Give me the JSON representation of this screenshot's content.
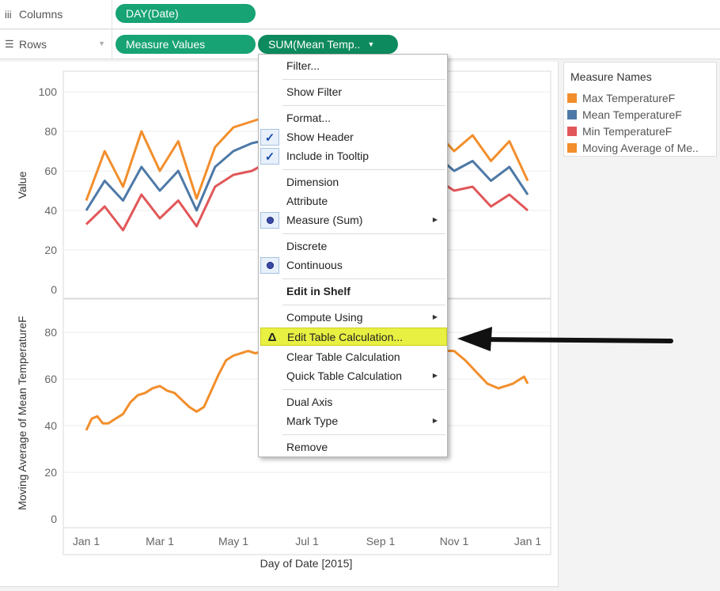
{
  "columns_shelf": {
    "icon": "columns-icon",
    "label": "Columns",
    "pills": [
      "DAY(Date)"
    ]
  },
  "rows_shelf": {
    "icon": "rows-icon",
    "label": "Rows",
    "pills": [
      "Measure Values",
      "SUM(Mean Temp.."
    ]
  },
  "legend": {
    "title": "Measure Names",
    "items": [
      {
        "label": "Max TemperatureF",
        "color": "#f28e2b"
      },
      {
        "label": "Mean TemperatureF",
        "color": "#4e79a7"
      },
      {
        "label": "Min TemperatureF",
        "color": "#e15759"
      },
      {
        "label": "Moving Average of Me..",
        "color": "#f28e2b"
      }
    ]
  },
  "context_menu": {
    "items": [
      {
        "label": "Filter..."
      },
      {
        "label": "Show Filter"
      },
      {
        "label": "Format..."
      },
      {
        "label": "Show Header",
        "check": true
      },
      {
        "label": "Include in Tooltip",
        "check": true
      },
      {
        "label": "Dimension"
      },
      {
        "label": "Attribute"
      },
      {
        "label": "Measure (Sum)",
        "radio": true,
        "submenu": true
      },
      {
        "label": "Discrete"
      },
      {
        "label": "Continuous",
        "radio": true
      },
      {
        "label": "Edit in Shelf",
        "bold": true
      },
      {
        "label": "Compute Using",
        "submenu": true
      },
      {
        "label": "Edit Table Calculation...",
        "highlighted": true,
        "delta_icon": "delta-icon"
      },
      {
        "label": "Clear Table Calculation"
      },
      {
        "label": "Quick Table Calculation",
        "submenu": true
      },
      {
        "label": "Dual Axis"
      },
      {
        "label": "Mark Type",
        "submenu": true
      },
      {
        "label": "Remove"
      }
    ]
  },
  "chart_data": [
    {
      "type": "line",
      "ylabel": "Value",
      "ylim": [
        0,
        105
      ],
      "yticks": [
        0,
        20,
        40,
        60,
        80,
        100
      ],
      "x_tick_labels": [
        "Jan 1",
        "Mar 1",
        "May 1",
        "Jul 1",
        "Sep 1",
        "Nov 1",
        "Jan 1"
      ],
      "x_months": [
        0,
        2,
        4,
        6,
        8,
        10,
        12
      ],
      "grid": "horizontal",
      "series": [
        {
          "name": "Max TemperatureF",
          "color": "#f28e2b",
          "x": [
            0.0,
            0.5,
            1.0,
            1.5,
            2.0,
            2.5,
            3.0,
            3.5,
            4.0,
            4.5,
            5.0,
            5.5,
            6.0,
            6.5,
            7.0,
            7.5,
            8.0,
            8.5,
            9.0,
            9.5,
            10.0,
            10.5,
            11.0,
            11.5,
            12.0
          ],
          "values": [
            45,
            70,
            52,
            80,
            60,
            75,
            46,
            72,
            82,
            85,
            88,
            84,
            80,
            86,
            84,
            90,
            82,
            78,
            85,
            80,
            70,
            78,
            65,
            75,
            55
          ]
        },
        {
          "name": "Mean TemperatureF",
          "color": "#4e79a7",
          "x": [
            0.0,
            0.5,
            1.0,
            1.5,
            2.0,
            2.5,
            3.0,
            3.5,
            4.0,
            4.5,
            5.0,
            5.5,
            6.0,
            6.5,
            7.0,
            7.5,
            8.0,
            8.5,
            9.0,
            9.5,
            10.0,
            10.5,
            11.0,
            11.5,
            12.0
          ],
          "values": [
            40,
            55,
            45,
            62,
            50,
            60,
            40,
            62,
            70,
            74,
            76,
            72,
            70,
            74,
            73,
            76,
            70,
            68,
            72,
            68,
            60,
            65,
            55,
            62,
            48
          ]
        },
        {
          "name": "Min TemperatureF",
          "color": "#e15759",
          "x": [
            0.0,
            0.5,
            1.0,
            1.5,
            2.0,
            2.5,
            3.0,
            3.5,
            4.0,
            4.5,
            5.0,
            5.5,
            6.0,
            6.5,
            7.0,
            7.5,
            8.0,
            8.5,
            9.0,
            9.5,
            10.0,
            10.5,
            11.0,
            11.5,
            12.0
          ],
          "values": [
            33,
            42,
            30,
            48,
            36,
            45,
            32,
            52,
            58,
            60,
            65,
            62,
            62,
            64,
            63,
            65,
            60,
            58,
            62,
            56,
            50,
            52,
            42,
            48,
            40
          ]
        }
      ]
    },
    {
      "type": "line",
      "ylabel": "Moving Average of Mean TemperatureF",
      "xlabel": "Day of Date [2015]",
      "ylim": [
        0,
        90
      ],
      "yticks": [
        0,
        20,
        40,
        60,
        80
      ],
      "x_tick_labels": [
        "Jan 1",
        "Mar 1",
        "May 1",
        "Jul 1",
        "Sep 1",
        "Nov 1",
        "Jan 1"
      ],
      "x_months": [
        0,
        2,
        4,
        6,
        8,
        10,
        12
      ],
      "grid": "horizontal",
      "series": [
        {
          "name": "Moving Average of Mean TemperatureF",
          "color": "#f28e2b",
          "x": [
            0.0,
            0.15,
            0.3,
            0.45,
            0.6,
            0.8,
            1.0,
            1.2,
            1.4,
            1.6,
            1.8,
            2.0,
            2.2,
            2.4,
            2.6,
            2.8,
            3.0,
            3.2,
            3.4,
            3.6,
            3.8,
            4.0,
            4.2,
            4.4,
            4.6,
            4.8,
            5.0,
            10.0,
            10.3,
            10.6,
            10.9,
            11.2,
            11.4,
            11.6,
            11.8,
            11.9,
            12.0
          ],
          "values": [
            38,
            43,
            44,
            41,
            41,
            43,
            45,
            50,
            53,
            54,
            56,
            57,
            55,
            54,
            51,
            48,
            46,
            48,
            55,
            62,
            68,
            70,
            71,
            72,
            71,
            72,
            74,
            72,
            68,
            63,
            58,
            56,
            57,
            58,
            60,
            61,
            58
          ]
        }
      ]
    }
  ]
}
